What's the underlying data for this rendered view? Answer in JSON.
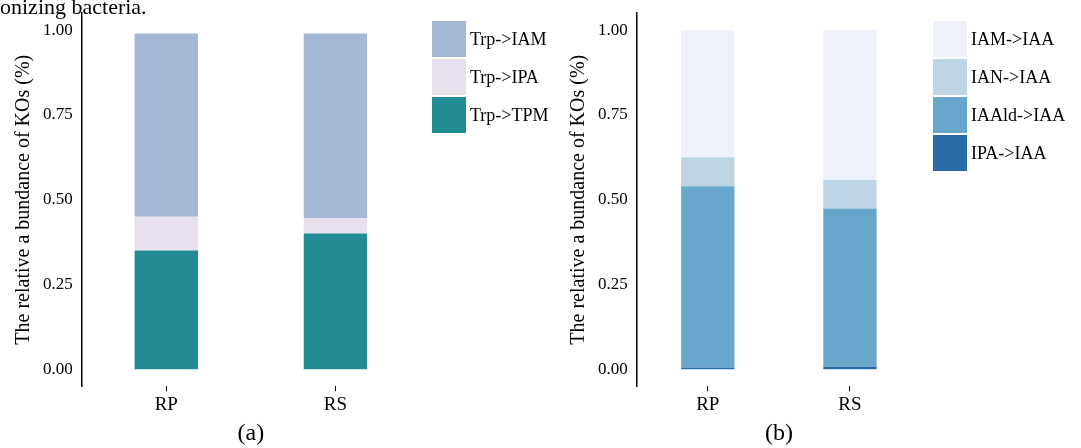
{
  "chart_data": [
    {
      "type": "bar",
      "ylabel": "The relative a bundance of KOs (%)",
      "categories": [
        "RP",
        "RS"
      ],
      "stacked": true,
      "legend": "top right",
      "ylim": [
        -0.05,
        1.05
      ],
      "yticks": [
        {
          "value": 0,
          "label": "0.00"
        },
        {
          "value": 0.25,
          "label": "0.25"
        },
        {
          "value": 0.5,
          "label": "0.50"
        },
        {
          "value": 0.75,
          "label": "0.75"
        },
        {
          "value": 1,
          "label": "1.00"
        }
      ],
      "annotations": [
        "(a)",
        "onizing bacteria."
      ],
      "series": [
        {
          "name": "Trp->TPM",
          "color": "#238b93",
          "values": [
            0.35,
            0.4
          ]
        },
        {
          "name": "Trp->IPA",
          "color": "#e8e0ee",
          "values": [
            0.1,
            0.045
          ]
        },
        {
          "name": "Trp->IAM",
          "color": "#a4b8d6",
          "values": [
            0.54,
            0.545
          ]
        }
      ]
    },
    {
      "type": "bar",
      "ylabel": "The relative a bundance of KOs (%)",
      "categories": [
        "RP",
        "RS"
      ],
      "stacked": true,
      "legend": "top right",
      "ylim": [
        -0.05,
        1.05
      ],
      "yticks": [
        {
          "value": 0,
          "label": "0.00"
        },
        {
          "value": 0.25,
          "label": "0.25"
        },
        {
          "value": 0.5,
          "label": "0.50"
        },
        {
          "value": 0.75,
          "label": "0.75"
        },
        {
          "value": 1,
          "label": "1.00"
        }
      ],
      "annotations": [
        "(b)"
      ],
      "series": [
        {
          "name": "IPA->IAA",
          "color": "#2a6ca8",
          "values": [
            0.005,
            0.007
          ]
        },
        {
          "name": "IAAld->IAA",
          "color": "#67a7cc",
          "values": [
            0.535,
            0.467
          ]
        },
        {
          "name": "IAN->IAA",
          "color": "#bdd4e4",
          "values": [
            0.085,
            0.084
          ]
        },
        {
          "name": "IAM->IAA",
          "color": "#eef1fa",
          "values": [
            0.375,
            0.442
          ]
        }
      ]
    }
  ]
}
